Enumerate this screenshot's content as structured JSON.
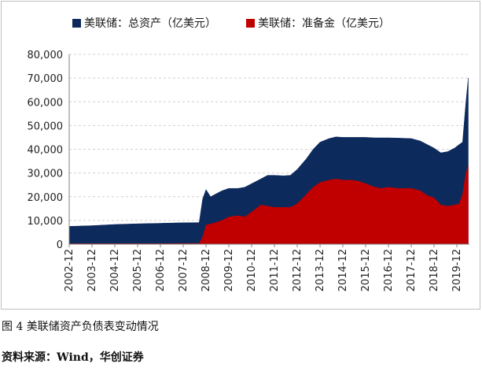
{
  "chart_data": {
    "type": "area",
    "title": "",
    "xlabel": "",
    "ylabel": "",
    "ylim": [
      0,
      80000
    ],
    "y_ticks": [
      "0",
      "10,000",
      "20,000",
      "30,000",
      "40,000",
      "50,000",
      "60,000",
      "70,000",
      "80,000"
    ],
    "x_ticks": [
      "2002-12",
      "2003-12",
      "2004-12",
      "2005-12",
      "2006-12",
      "2007-12",
      "2008-12",
      "2009-12",
      "2010-12",
      "2011-12",
      "2012-12",
      "2013-12",
      "2014-12",
      "2015-12",
      "2016-12",
      "2017-12",
      "2018-12",
      "2019-12"
    ],
    "grid": "horizontal dashed",
    "legend": "top",
    "x": [
      2002.9,
      2003.9,
      2004.9,
      2005.9,
      2006.9,
      2007.7,
      2008.6,
      2008.75,
      2008.9,
      2009.1,
      2009.3,
      2009.6,
      2009.9,
      2010.3,
      2010.6,
      2010.9,
      2011.3,
      2011.6,
      2011.9,
      2012.3,
      2012.6,
      2012.9,
      2013.3,
      2013.6,
      2013.9,
      2014.3,
      2014.6,
      2014.9,
      2015.3,
      2015.6,
      2015.9,
      2016.3,
      2016.6,
      2016.9,
      2017.3,
      2017.6,
      2017.9,
      2018.3,
      2018.6,
      2018.9,
      2019.2,
      2019.5,
      2019.8,
      2020.0,
      2020.15,
      2020.3,
      2020.4
    ],
    "series": [
      {
        "name": "美联储：总资产（亿美元）",
        "color": "#0c2a5c",
        "values": [
          7500,
          7800,
          8300,
          8600,
          8800,
          9000,
          9100,
          19000,
          23000,
          20000,
          21000,
          22500,
          23500,
          23500,
          24000,
          25500,
          27500,
          29000,
          29000,
          28800,
          29000,
          31500,
          36000,
          40000,
          43000,
          44500,
          45200,
          45000,
          45000,
          45000,
          45000,
          44800,
          44800,
          44800,
          44700,
          44600,
          44500,
          43500,
          42000,
          40500,
          38500,
          39000,
          40500,
          42000,
          43000,
          60000,
          70000
        ]
      },
      {
        "name": "美联储：准备金（亿美元）",
        "color": "#c00000",
        "values": [
          200,
          200,
          200,
          200,
          200,
          300,
          300,
          3000,
          8000,
          8500,
          9000,
          10000,
          11500,
          12000,
          11500,
          13500,
          16500,
          16000,
          15500,
          15500,
          15500,
          17000,
          21000,
          24000,
          26000,
          27000,
          27500,
          27000,
          27000,
          26500,
          25500,
          24000,
          23500,
          24000,
          23500,
          23500,
          23500,
          22500,
          20500,
          19500,
          16500,
          16000,
          16500,
          17000,
          21000,
          30000,
          33000
        ]
      }
    ]
  },
  "caption": "图 4  美联储资产负债表变动情况",
  "source": "资料来源：Wind，华创证券"
}
